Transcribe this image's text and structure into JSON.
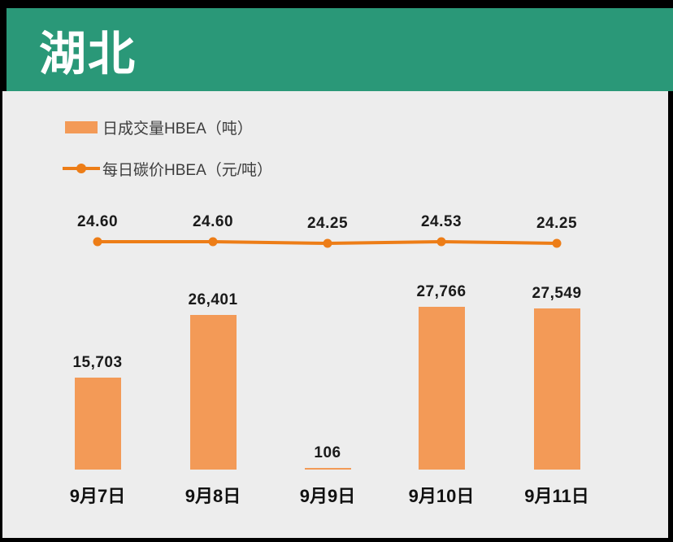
{
  "header": {
    "title": "湖北"
  },
  "legend": [
    {
      "label": "日成交量HBEA（吨）",
      "series": "volume"
    },
    {
      "label": "每日碳价HBEA（元/吨）",
      "series": "price"
    }
  ],
  "chart_data": {
    "type": "combo bar+line",
    "categories": [
      "9月7日",
      "9月8日",
      "9月9日",
      "9月10日",
      "9月11日"
    ],
    "series": [
      {
        "name": "日成交量HBEA（吨）",
        "type": "bar",
        "values": [
          15703,
          26401,
          106,
          27766,
          27549
        ],
        "labels": [
          "15,703",
          "26,401",
          "106",
          "27,766",
          "27,549"
        ],
        "color": "#F39A57"
      },
      {
        "name": "每日碳价HBEA（元/吨）",
        "type": "line",
        "values": [
          24.6,
          24.6,
          24.25,
          24.53,
          24.25
        ],
        "labels": [
          "24.60",
          "24.60",
          "24.25",
          "24.53",
          "24.25"
        ],
        "color": "#ED7D17"
      }
    ],
    "title": "湖北",
    "xlabel": "",
    "ylabel": "",
    "grid": false,
    "value_labels": true,
    "legend_position": "top-left"
  },
  "colors": {
    "frame_bg": "#000000",
    "header_bg": "#2A9878",
    "title_text": "#FFFFFF",
    "card_bg": "#EDEDED",
    "bar": "#F39A57",
    "line": "#ED7D17",
    "value_label_text": "#1A1A1A",
    "legend_text": "#3D3D3D"
  }
}
